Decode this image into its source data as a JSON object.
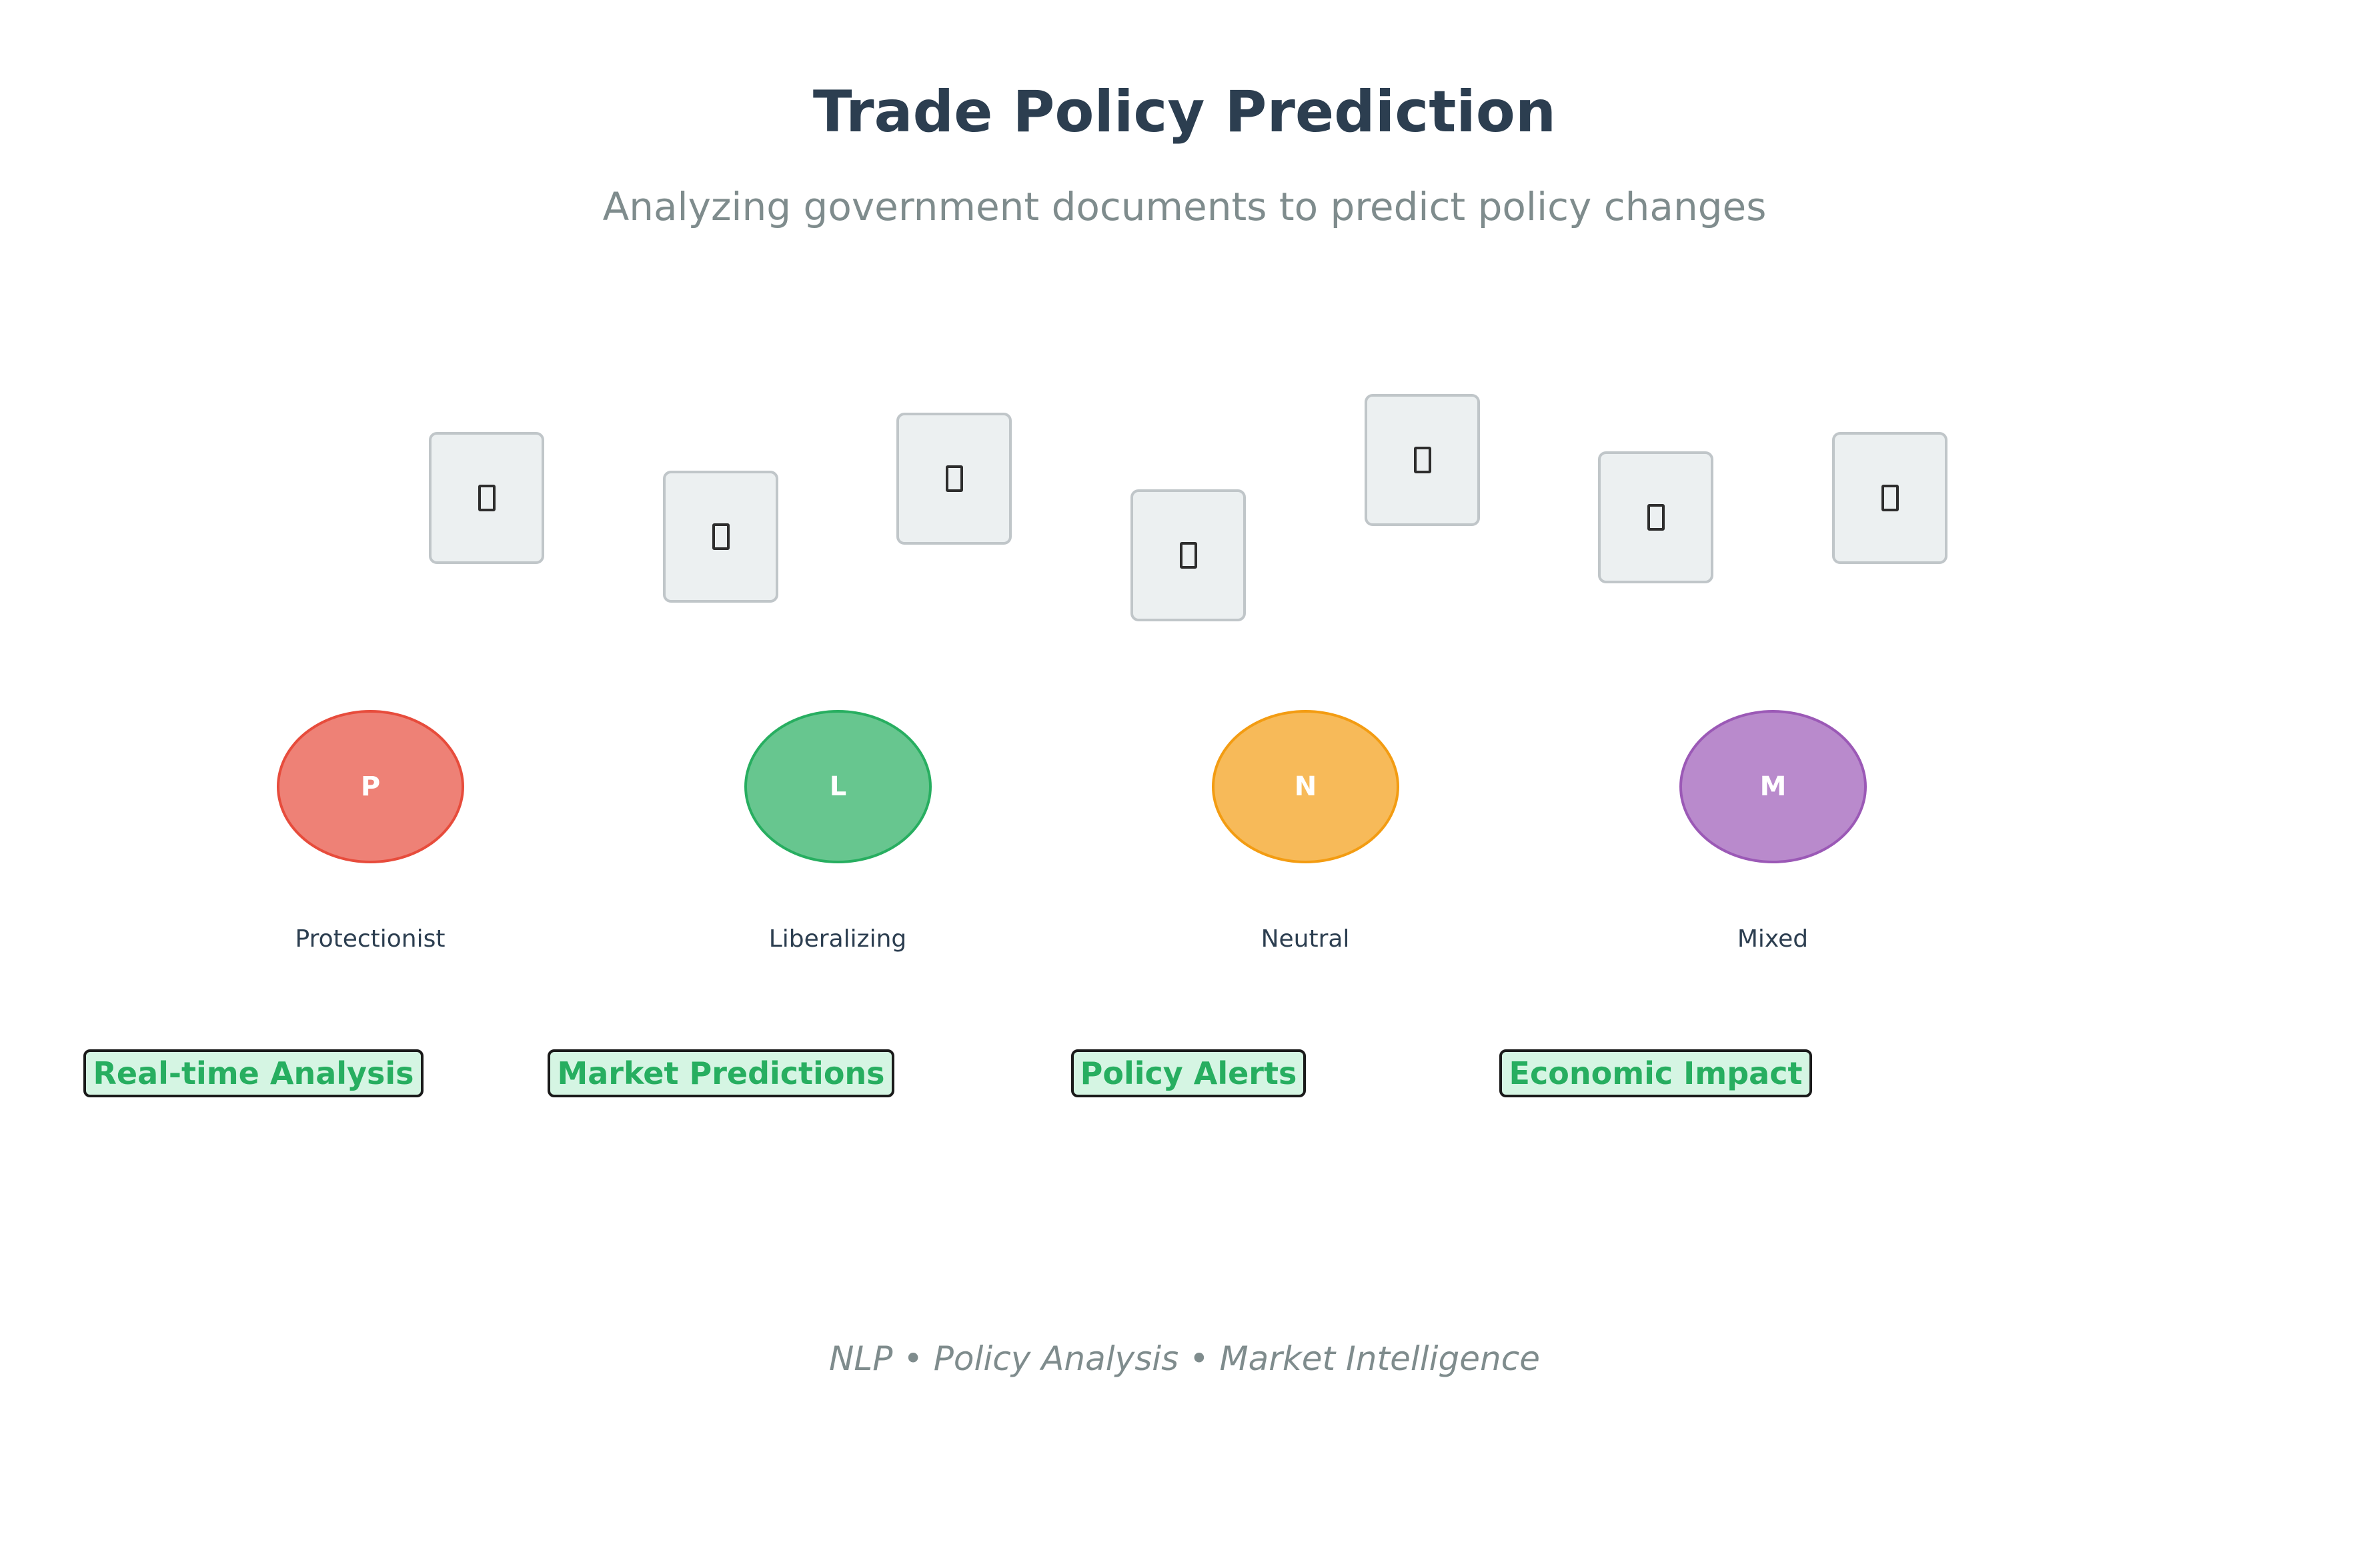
{
  "header": {
    "title": "Trade Policy Prediction",
    "subtitle": "Analyzing government documents to predict policy changes"
  },
  "documents": {
    "icon": "document-icon",
    "count": 7
  },
  "categories": [
    {
      "initial": "P",
      "label": "Protectionist",
      "color": "#e74c3c"
    },
    {
      "initial": "L",
      "label": "Liberalizing",
      "color": "#27ae60"
    },
    {
      "initial": "N",
      "label": "Neutral",
      "color": "#f39c12"
    },
    {
      "initial": "M",
      "label": "Mixed",
      "color": "#9b59b6"
    }
  ],
  "features": [
    {
      "label": "Real-time Analysis"
    },
    {
      "label": "Market Predictions"
    },
    {
      "label": "Policy Alerts"
    },
    {
      "label": "Economic Impact"
    }
  ],
  "footer": {
    "tagline": "NLP • Policy Analysis • Market Intelligence"
  }
}
